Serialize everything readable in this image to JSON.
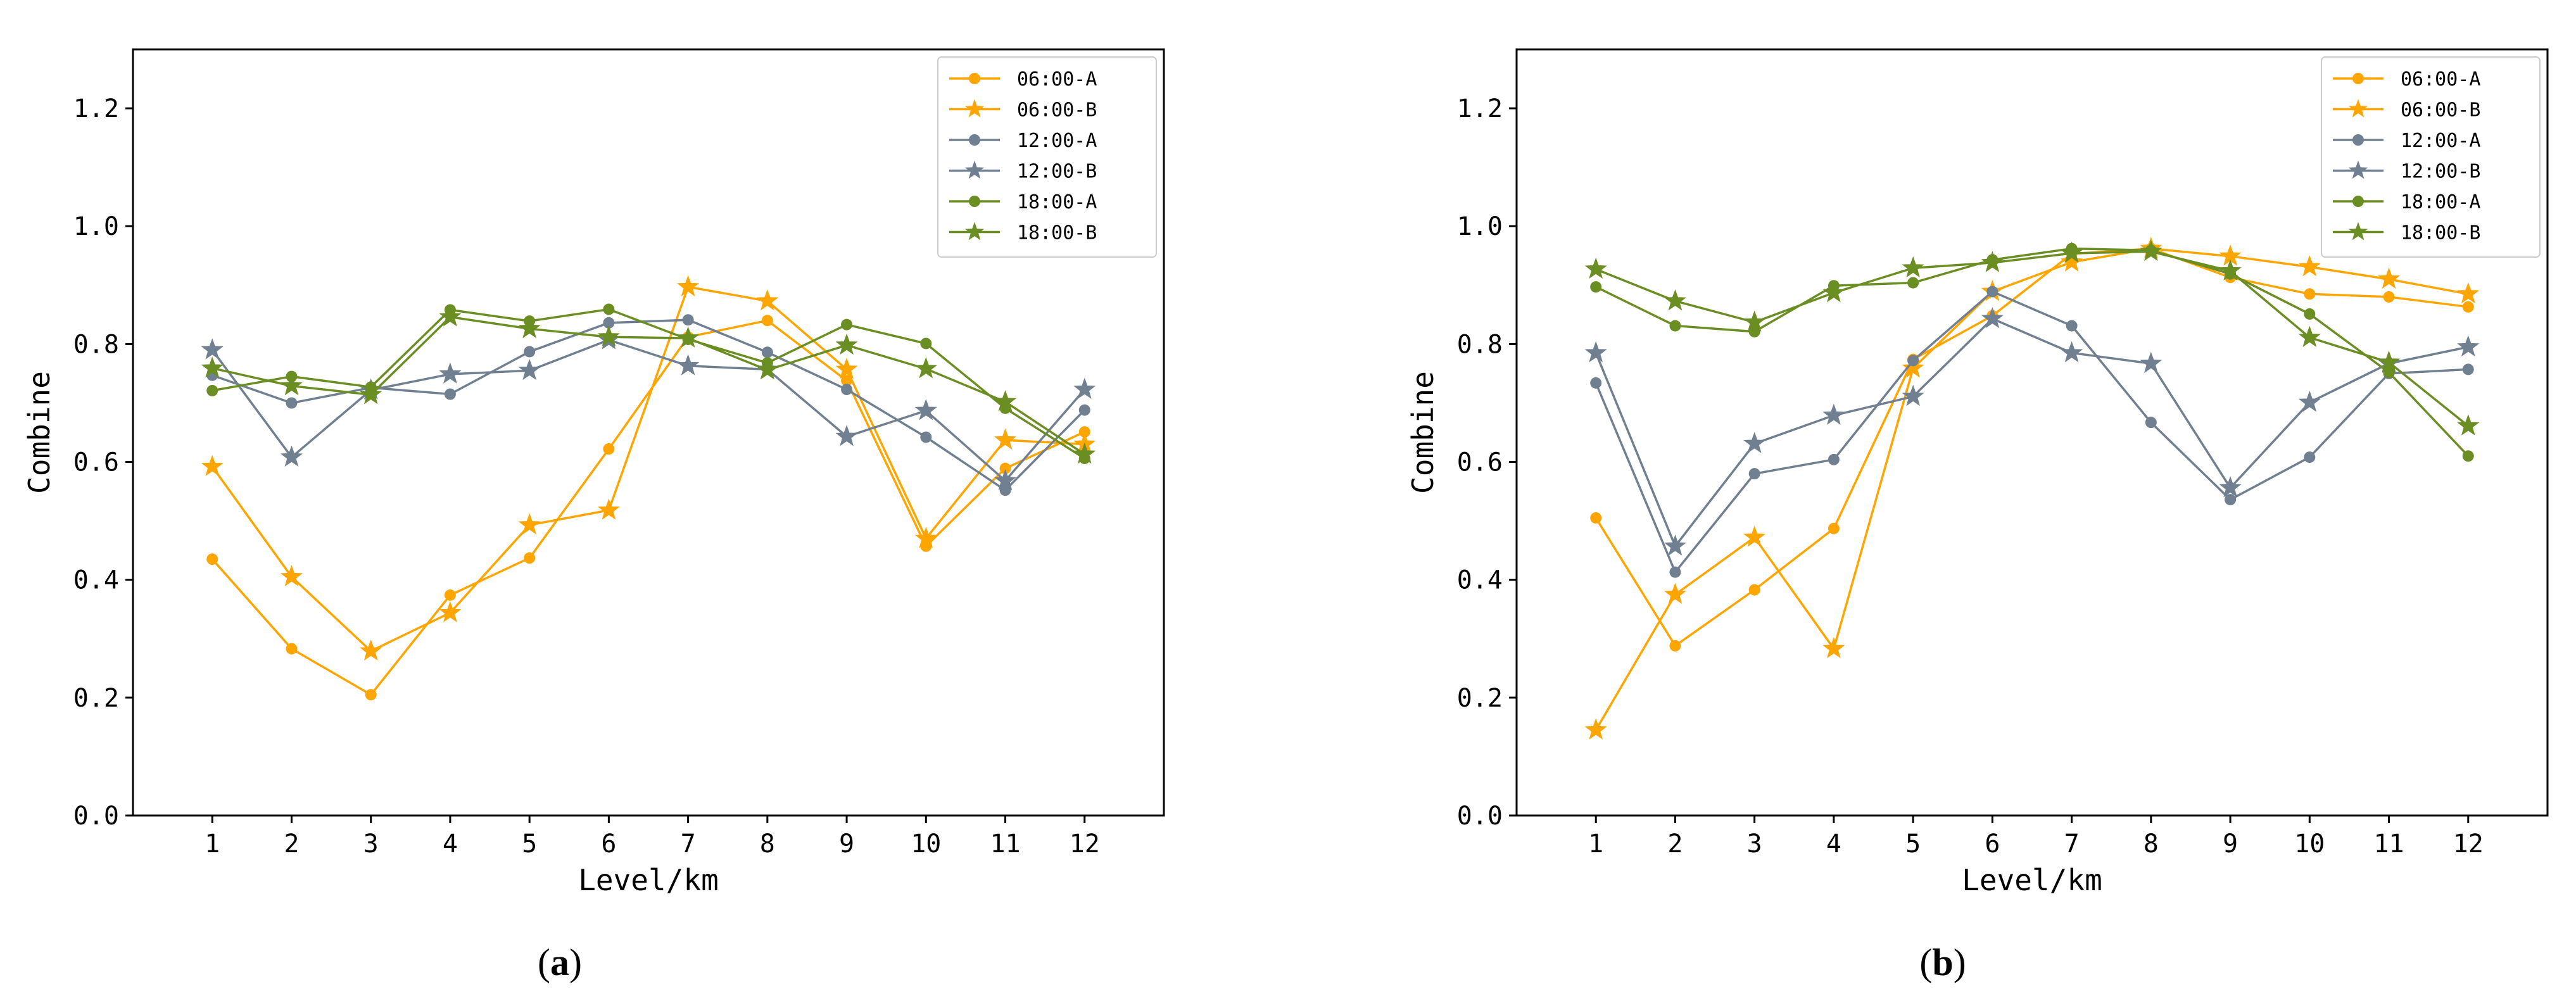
{
  "chart_data": [
    {
      "type": "line",
      "panel_label": "a",
      "xlabel": "Level/km",
      "ylabel": "Combine",
      "x": [
        1,
        2,
        3,
        4,
        5,
        6,
        7,
        8,
        9,
        10,
        11,
        12
      ],
      "xlim": [
        0,
        13
      ],
      "ylim": [
        0,
        1.3
      ],
      "yticks": [
        0.0,
        0.2,
        0.4,
        0.6,
        0.8,
        1.0,
        1.2
      ],
      "ytick_labels": [
        "0.0",
        "0.2",
        "0.4",
        "0.6",
        "0.8",
        "1.0",
        "1.2"
      ],
      "xtick_labels": [
        "1",
        "2",
        "3",
        "4",
        "5",
        "6",
        "7",
        "8",
        "9",
        "10",
        "11",
        "12"
      ],
      "legend_position": "top-right",
      "series": [
        {
          "name": "06:00-A",
          "color": "#FFA500",
          "marker": "circle",
          "values": [
            0.435,
            0.283,
            0.205,
            0.374,
            0.437,
            0.622,
            0.812,
            0.84,
            0.738,
            0.457,
            0.589,
            0.651
          ]
        },
        {
          "name": "06:00-B",
          "color": "#FFA500",
          "marker": "star",
          "values": [
            0.592,
            0.405,
            0.279,
            0.344,
            0.493,
            0.518,
            0.897,
            0.873,
            0.757,
            0.47,
            0.637,
            0.63
          ]
        },
        {
          "name": "12:00-A",
          "color": "#708090",
          "marker": "circle",
          "values": [
            0.747,
            0.7,
            0.726,
            0.715,
            0.787,
            0.836,
            0.841,
            0.786,
            0.723,
            0.642,
            0.552,
            0.688
          ]
        },
        {
          "name": "12:00-B",
          "color": "#708090",
          "marker": "star",
          "values": [
            0.79,
            0.608,
            0.722,
            0.749,
            0.755,
            0.807,
            0.763,
            0.757,
            0.643,
            0.687,
            0.568,
            0.723
          ]
        },
        {
          "name": "18:00-A",
          "color": "#6B8E23",
          "marker": "circle",
          "values": [
            0.721,
            0.745,
            0.727,
            0.858,
            0.839,
            0.859,
            0.808,
            0.768,
            0.833,
            0.801,
            0.691,
            0.606
          ]
        },
        {
          "name": "18:00-B",
          "color": "#6B8E23",
          "marker": "star",
          "values": [
            0.759,
            0.729,
            0.714,
            0.846,
            0.826,
            0.812,
            0.81,
            0.756,
            0.798,
            0.758,
            0.702,
            0.613
          ]
        }
      ]
    },
    {
      "type": "line",
      "panel_label": "b",
      "xlabel": "Level/km",
      "ylabel": "Combine",
      "x": [
        1,
        2,
        3,
        4,
        5,
        6,
        7,
        8,
        9,
        10,
        11,
        12
      ],
      "xlim": [
        0,
        13
      ],
      "ylim": [
        0,
        1.3
      ],
      "yticks": [
        0.0,
        0.2,
        0.4,
        0.6,
        0.8,
        1.0,
        1.2
      ],
      "ytick_labels": [
        "0.0",
        "0.2",
        "0.4",
        "0.6",
        "0.8",
        "1.0",
        "1.2"
      ],
      "xtick_labels": [
        "1",
        "2",
        "3",
        "4",
        "5",
        "6",
        "7",
        "8",
        "9",
        "10",
        "11",
        "12"
      ],
      "legend_position": "top-right",
      "series": [
        {
          "name": "06:00-A",
          "color": "#FFA500",
          "marker": "circle",
          "values": [
            0.505,
            0.288,
            0.383,
            0.487,
            0.774,
            0.848,
            0.953,
            0.962,
            0.913,
            0.885,
            0.88,
            0.863
          ]
        },
        {
          "name": "06:00-B",
          "color": "#FFA500",
          "marker": "star",
          "values": [
            0.145,
            0.375,
            0.472,
            0.283,
            0.759,
            0.889,
            0.939,
            0.962,
            0.949,
            0.931,
            0.91,
            0.885
          ]
        },
        {
          "name": "12:00-A",
          "color": "#708090",
          "marker": "circle",
          "values": [
            0.734,
            0.413,
            0.58,
            0.604,
            0.772,
            0.889,
            0.831,
            0.667,
            0.536,
            0.608,
            0.75,
            0.757
          ]
        },
        {
          "name": "12:00-B",
          "color": "#708090",
          "marker": "star",
          "values": [
            0.785,
            0.457,
            0.631,
            0.679,
            0.711,
            0.843,
            0.785,
            0.767,
            0.556,
            0.701,
            0.767,
            0.795
          ]
        },
        {
          "name": "18:00-A",
          "color": "#6B8E23",
          "marker": "circle",
          "values": [
            0.897,
            0.831,
            0.821,
            0.899,
            0.904,
            0.943,
            0.962,
            0.959,
            0.919,
            0.851,
            0.752,
            0.61
          ]
        },
        {
          "name": "18:00-B",
          "color": "#6B8E23",
          "marker": "star",
          "values": [
            0.927,
            0.873,
            0.837,
            0.887,
            0.929,
            0.938,
            0.954,
            0.957,
            0.924,
            0.811,
            0.769,
            0.661
          ]
        }
      ]
    }
  ]
}
